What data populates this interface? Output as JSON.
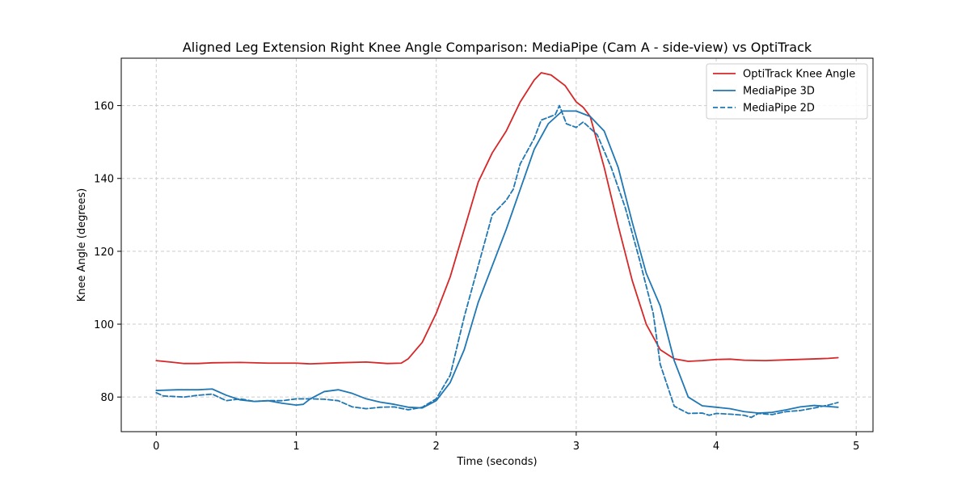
{
  "chart_data": {
    "type": "line",
    "title": "Aligned Leg Extension Right Knee Angle Comparison: MediaPipe (Cam A - side-view) vs OptiTrack",
    "xlabel": "Time (seconds)",
    "ylabel": "Knee Angle (degrees)",
    "xlim": [
      -0.25,
      5.12
    ],
    "ylim": [
      70.5,
      173
    ],
    "x_ticks": [
      0,
      1,
      2,
      3,
      4,
      5
    ],
    "y_ticks": [
      80,
      100,
      120,
      140,
      160
    ],
    "grid": true,
    "legend_position": "top-right",
    "series": [
      {
        "name": "OptiTrack Knee Angle",
        "color": "#d62728",
        "dash": "solid",
        "points": [
          [
            0,
            90
          ],
          [
            0.1,
            89.6
          ],
          [
            0.2,
            89.2
          ],
          [
            0.3,
            89.2
          ],
          [
            0.4,
            89.4
          ],
          [
            0.6,
            89.5
          ],
          [
            0.8,
            89.3
          ],
          [
            1.0,
            89.3
          ],
          [
            1.1,
            89.1
          ],
          [
            1.3,
            89.4
          ],
          [
            1.5,
            89.6
          ],
          [
            1.65,
            89.2
          ],
          [
            1.75,
            89.3
          ],
          [
            1.8,
            90.5
          ],
          [
            1.9,
            95
          ],
          [
            2.0,
            103
          ],
          [
            2.1,
            113
          ],
          [
            2.2,
            126
          ],
          [
            2.3,
            139
          ],
          [
            2.4,
            147
          ],
          [
            2.5,
            153
          ],
          [
            2.6,
            161
          ],
          [
            2.7,
            167
          ],
          [
            2.75,
            169
          ],
          [
            2.82,
            168.4
          ],
          [
            2.92,
            165.5
          ],
          [
            3.0,
            161
          ],
          [
            3.05,
            159.5
          ],
          [
            3.1,
            157
          ],
          [
            3.2,
            143
          ],
          [
            3.3,
            127
          ],
          [
            3.4,
            112
          ],
          [
            3.5,
            100
          ],
          [
            3.6,
            93
          ],
          [
            3.7,
            90.5
          ],
          [
            3.8,
            89.8
          ],
          [
            3.9,
            90
          ],
          [
            4.0,
            90.3
          ],
          [
            4.1,
            90.4
          ],
          [
            4.2,
            90.1
          ],
          [
            4.35,
            90
          ],
          [
            4.5,
            90.2
          ],
          [
            4.65,
            90.4
          ],
          [
            4.8,
            90.6
          ],
          [
            4.87,
            90.8
          ]
        ]
      },
      {
        "name": "MediaPipe 3D",
        "color": "#1f77b4",
        "dash": "solid",
        "points": [
          [
            0,
            81.8
          ],
          [
            0.15,
            82
          ],
          [
            0.3,
            82
          ],
          [
            0.4,
            82.2
          ],
          [
            0.5,
            80.5
          ],
          [
            0.6,
            79.2
          ],
          [
            0.7,
            78.8
          ],
          [
            0.8,
            79
          ],
          [
            0.9,
            78.3
          ],
          [
            1.0,
            77.8
          ],
          [
            1.05,
            78
          ],
          [
            1.1,
            79.5
          ],
          [
            1.2,
            81.5
          ],
          [
            1.3,
            82
          ],
          [
            1.4,
            81
          ],
          [
            1.5,
            79.5
          ],
          [
            1.6,
            78.6
          ],
          [
            1.7,
            78
          ],
          [
            1.8,
            77.2
          ],
          [
            1.9,
            77
          ],
          [
            2.0,
            79
          ],
          [
            2.1,
            84
          ],
          [
            2.2,
            93
          ],
          [
            2.3,
            106
          ],
          [
            2.4,
            116
          ],
          [
            2.5,
            126
          ],
          [
            2.6,
            137
          ],
          [
            2.7,
            148
          ],
          [
            2.8,
            155
          ],
          [
            2.9,
            158.5
          ],
          [
            3.0,
            158.5
          ],
          [
            3.1,
            157
          ],
          [
            3.2,
            153
          ],
          [
            3.3,
            143
          ],
          [
            3.4,
            128
          ],
          [
            3.5,
            114
          ],
          [
            3.6,
            105
          ],
          [
            3.7,
            90
          ],
          [
            3.8,
            80
          ],
          [
            3.9,
            77.6
          ],
          [
            4.0,
            77.2
          ],
          [
            4.1,
            76.8
          ],
          [
            4.2,
            76
          ],
          [
            4.3,
            75.6
          ],
          [
            4.4,
            75.8
          ],
          [
            4.5,
            76.5
          ],
          [
            4.6,
            77.3
          ],
          [
            4.7,
            77.7
          ],
          [
            4.8,
            77.4
          ],
          [
            4.87,
            77.2
          ]
        ]
      },
      {
        "name": "MediaPipe 2D",
        "color": "#1f77b4",
        "dash": "dashed",
        "points": [
          [
            0,
            81.2
          ],
          [
            0.05,
            80.3
          ],
          [
            0.2,
            80
          ],
          [
            0.3,
            80.5
          ],
          [
            0.4,
            80.8
          ],
          [
            0.5,
            79
          ],
          [
            0.6,
            79.5
          ],
          [
            0.7,
            78.8
          ],
          [
            0.8,
            79
          ],
          [
            0.9,
            79
          ],
          [
            1.0,
            79.5
          ],
          [
            1.1,
            79.5
          ],
          [
            1.2,
            79.4
          ],
          [
            1.3,
            79
          ],
          [
            1.4,
            77.3
          ],
          [
            1.5,
            76.8
          ],
          [
            1.6,
            77.2
          ],
          [
            1.7,
            77.3
          ],
          [
            1.8,
            76.5
          ],
          [
            1.9,
            77.2
          ],
          [
            2.0,
            79.5
          ],
          [
            2.1,
            86
          ],
          [
            2.2,
            102
          ],
          [
            2.3,
            116
          ],
          [
            2.4,
            130
          ],
          [
            2.5,
            134
          ],
          [
            2.55,
            137
          ],
          [
            2.6,
            144
          ],
          [
            2.7,
            151
          ],
          [
            2.75,
            156
          ],
          [
            2.85,
            157.5
          ],
          [
            2.88,
            160
          ],
          [
            2.93,
            155
          ],
          [
            3.0,
            154
          ],
          [
            3.05,
            155.5
          ],
          [
            3.15,
            152
          ],
          [
            3.25,
            143
          ],
          [
            3.35,
            132
          ],
          [
            3.45,
            118
          ],
          [
            3.55,
            103
          ],
          [
            3.6,
            89
          ],
          [
            3.7,
            77.5
          ],
          [
            3.8,
            75.5
          ],
          [
            3.9,
            75.6
          ],
          [
            3.95,
            75
          ],
          [
            4.0,
            75.5
          ],
          [
            4.1,
            75.3
          ],
          [
            4.2,
            75
          ],
          [
            4.25,
            74.4
          ],
          [
            4.3,
            75.5
          ],
          [
            4.4,
            75.2
          ],
          [
            4.5,
            76
          ],
          [
            4.6,
            76.3
          ],
          [
            4.7,
            77
          ],
          [
            4.8,
            77.8
          ],
          [
            4.87,
            78.5
          ]
        ]
      }
    ]
  }
}
